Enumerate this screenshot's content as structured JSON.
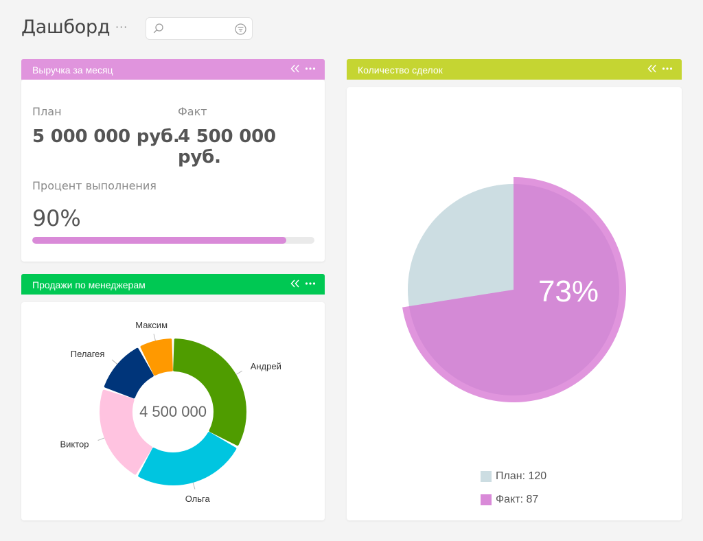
{
  "header": {
    "title": "Дашборд",
    "more_label": "···",
    "search": {
      "value": "",
      "placeholder": ""
    }
  },
  "widgets": {
    "revenue": {
      "title": "Выручка за месяц",
      "header_color": "#e094dd",
      "plan_label": "План",
      "plan_value": "5 000 000 руб.",
      "fact_label": "Факт",
      "fact_value": "4 500 000 руб.",
      "percent_label": "Процент выполнения",
      "percent_value": "90%",
      "progress": 0.9,
      "progress_color": "#d98ad8"
    },
    "sales": {
      "title": "Продажи по менеджерам",
      "header_color": "#00c853",
      "total": "4 500 000"
    },
    "deals": {
      "title": "Количество сделок",
      "header_color": "#c5d532",
      "percent": "73%",
      "legend": [
        {
          "label": "План: 120",
          "color": "#ccdde2"
        },
        {
          "label": "Факт: 87",
          "color": "#d98ad8"
        }
      ]
    }
  },
  "chart_data": [
    {
      "type": "pie",
      "title": "Продажи по менеджерам",
      "center_label": "4 500 000",
      "slices": [
        {
          "label": "Андрей",
          "value": 30,
          "color": "#4f9c00"
        },
        {
          "label": "Ольга",
          "value": 23,
          "color": "#00c5e0"
        },
        {
          "label": "Виктор",
          "value": 20,
          "color": "#ffc3e0"
        },
        {
          "label": "Пелагея",
          "value": 11,
          "color": "#00357a"
        },
        {
          "label": "Максим",
          "value": 7,
          "color": "#ff9900"
        }
      ]
    },
    {
      "type": "pie",
      "title": "Количество сделок",
      "center_label": "73%",
      "slices": [
        {
          "label": "План",
          "value": 120,
          "color": "#ccdde2"
        },
        {
          "label": "Факт",
          "value": 87,
          "color": "#d48ad6"
        }
      ]
    }
  ]
}
